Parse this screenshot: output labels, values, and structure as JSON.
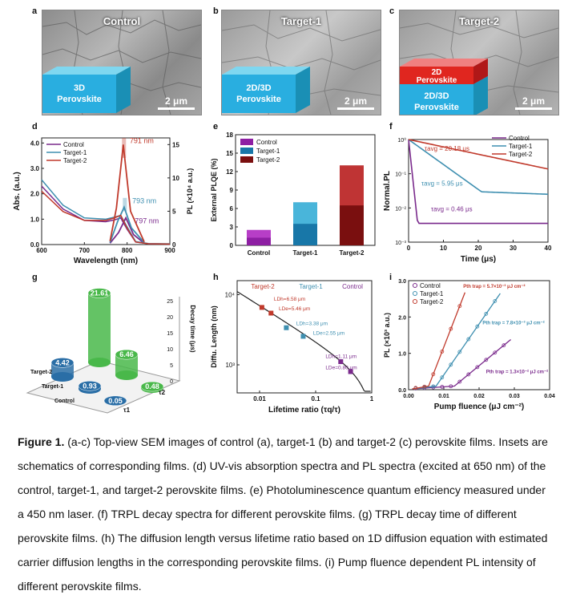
{
  "panels": {
    "a": {
      "letter": "a",
      "title": "Control",
      "box_label": "3D\nPerovskite",
      "box_l1": "3D",
      "box_l2": "Perovskite",
      "scale": "2 μm"
    },
    "b": {
      "letter": "b",
      "title": "Target-1",
      "box_l1": "2D/3D",
      "box_l2": "Perovskite",
      "scale": "2 μm"
    },
    "c": {
      "letter": "c",
      "title": "Target-2",
      "top_label": "2D",
      "top_label2": "Perovskite",
      "box_l1": "2D/3D",
      "box_l2": "Perovskite",
      "scale": "2 μm"
    },
    "d": {
      "letter": "d"
    },
    "e": {
      "letter": "e"
    },
    "f": {
      "letter": "f"
    },
    "g": {
      "letter": "g"
    },
    "h": {
      "letter": "h"
    },
    "i": {
      "letter": "i"
    }
  },
  "colors": {
    "control": "#7a2a8c",
    "target1": "#3e8fb0",
    "target2": "#c0392b"
  },
  "chart_data": [
    {
      "id": "d",
      "type": "line",
      "xlabel": "Wavelength (nm)",
      "ylabel": "Abs. (a.u.)",
      "y2label": "PL (×10⁴ a.u.)",
      "xlim": [
        600,
        900
      ],
      "ylim": [
        0,
        4.2
      ],
      "y2lim": [
        0,
        16
      ],
      "xticks": [
        600,
        700,
        800,
        900
      ],
      "yticks": [
        "0.0",
        "1.0",
        "2.0",
        "3.0",
        "4.0"
      ],
      "y2ticks": [
        0,
        5,
        10,
        15
      ],
      "legend": [
        "Control",
        "Target-1",
        "Target-2"
      ],
      "annotations": [
        "791 nm",
        "793 nm",
        "797 nm"
      ],
      "series": [
        {
          "name": "Control",
          "abs": [
            [
              600,
              2.3
            ],
            [
              650,
              1.4
            ],
            [
              700,
              0.95
            ],
            [
              750,
              0.9
            ],
            [
              770,
              0.97
            ],
            [
              785,
              1.05
            ],
            [
              800,
              0.6
            ],
            [
              820,
              0.1
            ],
            [
              850,
              0.03
            ],
            [
              900,
              0.02
            ]
          ],
          "pl": [
            [
              760,
              0.2
            ],
            [
              780,
              1.8
            ],
            [
              797,
              4.0
            ],
            [
              815,
              1.5
            ],
            [
              840,
              0.2
            ]
          ]
        },
        {
          "name": "Target-1",
          "abs": [
            [
              600,
              2.55
            ],
            [
              650,
              1.55
            ],
            [
              700,
              1.05
            ],
            [
              750,
              1.0
            ],
            [
              770,
              1.08
            ],
            [
              785,
              1.15
            ],
            [
              800,
              0.7
            ],
            [
              820,
              0.12
            ],
            [
              850,
              0.04
            ],
            [
              900,
              0.03
            ]
          ],
          "pl": [
            [
              760,
              0.3
            ],
            [
              778,
              3.5
            ],
            [
              793,
              5.6
            ],
            [
              810,
              2.5
            ],
            [
              840,
              0.3
            ]
          ]
        },
        {
          "name": "Target-2",
          "abs": [
            [
              600,
              2.1
            ],
            [
              650,
              1.3
            ],
            [
              700,
              0.95
            ],
            [
              750,
              0.95
            ],
            [
              770,
              1.05
            ],
            [
              785,
              1.15
            ],
            [
              800,
              0.65
            ],
            [
              820,
              0.1
            ],
            [
              850,
              0.03
            ],
            [
              900,
              0.02
            ]
          ],
          "pl": [
            [
              760,
              0.5
            ],
            [
              775,
              5.5
            ],
            [
              791,
              15.0
            ],
            [
              808,
              5.0
            ],
            [
              840,
              0.4
            ]
          ]
        }
      ]
    },
    {
      "id": "e",
      "type": "bar",
      "ylabel": "External PLQE (%)",
      "ylim": [
        0,
        18
      ],
      "yticks": [
        0,
        3,
        6,
        9,
        12,
        15,
        18
      ],
      "categories": [
        "Control",
        "Target-1",
        "Target-2"
      ],
      "values": [
        2.5,
        7.0,
        13.0
      ],
      "legend": [
        "Control",
        "Target-1",
        "Target-2"
      ]
    },
    {
      "id": "f",
      "type": "line",
      "xlabel": "Time (μs)",
      "ylabel": "Normal.PL",
      "xlim": [
        0,
        40
      ],
      "xticks": [
        0,
        10,
        20,
        30,
        40
      ],
      "ylim_log": [
        -3,
        0
      ],
      "yticks": [
        "10⁰",
        "10⁻¹",
        "10⁻²",
        "10⁻³"
      ],
      "legend": [
        "Control",
        "Target-1",
        "Target-2"
      ],
      "annotations": [
        "τavg = 20.18 μs",
        "τavg = 5.95 μs",
        "τavg = 0.46 μs"
      ],
      "tau": [
        0.46,
        5.95,
        20.18
      ]
    },
    {
      "id": "g",
      "type": "bar3d",
      "zlabel": "Decay time (μs)",
      "zticks": [
        0,
        5,
        10,
        15,
        20,
        25
      ],
      "rows": [
        "Control",
        "Target-1",
        "Target-2"
      ],
      "cols": [
        "τ1",
        "τ2"
      ],
      "values": {
        "tau1": [
          0.05,
          0.93,
          4.42
        ],
        "tau2": [
          0.48,
          6.46,
          21.61
        ]
      },
      "labels": [
        "21.61",
        "6.46",
        "4.42",
        "0.93",
        "0.48",
        "0.05"
      ]
    },
    {
      "id": "h",
      "type": "line",
      "xlabel": "Lifetime ratio (τq/τ)",
      "ylabel": "Diffu. Length (nm)",
      "xticks": [
        "0.01",
        "0.1",
        "1"
      ],
      "yticks": [
        "10⁴",
        "10³"
      ],
      "legend": [
        "Target-2",
        "Target-1",
        "Control"
      ],
      "annotations": [
        "LDh=6.58 μm",
        "LDe=5.46 μm",
        "LDh=3.38 μm",
        "LDe=2.55 μm",
        "LDh=1.11 μm",
        "LDe=0.80 μm"
      ],
      "points": [
        {
          "x": 0.011,
          "y": 6580
        },
        {
          "x": 0.016,
          "y": 5460
        },
        {
          "x": 0.03,
          "y": 3380
        },
        {
          "x": 0.06,
          "y": 2550
        },
        {
          "x": 0.28,
          "y": 1110
        },
        {
          "x": 0.42,
          "y": 800
        }
      ]
    },
    {
      "id": "i",
      "type": "scatter",
      "xlabel": "Pump fluence (μJ cm⁻²)",
      "ylabel": "PL (×10³ a.u.)",
      "xlim": [
        0,
        0.04
      ],
      "ylim": [
        0,
        3.0
      ],
      "xticks": [
        "0.00",
        "0.01",
        "0.02",
        "0.03",
        "0.04"
      ],
      "yticks": [
        "0.0",
        "1.0",
        "2.0",
        "3.0"
      ],
      "legend": [
        "Control",
        "Target-1",
        "Target-2"
      ],
      "annotations": [
        "Pth trap = 5.7×10⁻³ μJ cm⁻²",
        "Pth trap = 7.8×10⁻³ μJ cm⁻²",
        "Pth trap = 1.3×10⁻² μJ cm⁻²"
      ],
      "thresholds": {
        "Target-2": 0.0057,
        "Target-1": 0.0078,
        "Control": 0.013
      }
    }
  ],
  "caption": {
    "bold": "Figure 1.",
    "text": " (a-c) Top-view SEM images of control (a), target-1 (b) and target-2 (c) perovskite films. Insets are schematics of corresponding films. (d) UV-vis absorption spectra and PL spectra (excited at 650 nm) of the control, target-1, and target-2 perovskite films. (e) Photoluminescence quantum efficiency measured under a 450 nm laser. (f) TRPL decay spectra for different perovskite films. (g) TRPL decay time of different perovskite films. (h) The diffusion length versus lifetime ratio based on 1D diffusion equation with estimated carrier diffusion lengths in the corresponding perovskite films. (i) Pump fluence dependent PL intensity of different perovskite films."
  }
}
